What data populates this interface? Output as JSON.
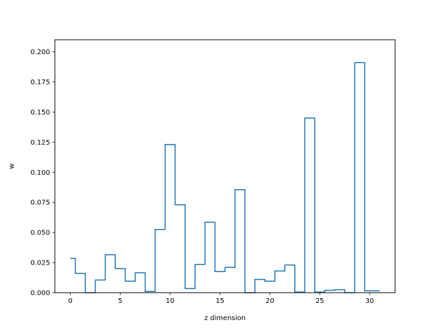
{
  "chart_data": {
    "type": "step",
    "title": "",
    "xlabel": "z dimension",
    "ylabel": "w",
    "xlim": [
      -1.55,
      32.55
    ],
    "ylim": [
      0,
      0.21
    ],
    "grid": false,
    "x_ticks": [
      0,
      5,
      10,
      15,
      20,
      25,
      30
    ],
    "x_tick_labels": [
      "0",
      "5",
      "10",
      "15",
      "20",
      "25",
      "30"
    ],
    "y_ticks": [
      0.0,
      0.025,
      0.05,
      0.075,
      0.1,
      0.125,
      0.15,
      0.175,
      0.2
    ],
    "y_tick_labels": [
      "0.000",
      "0.025",
      "0.050",
      "0.075",
      "0.100",
      "0.125",
      "0.150",
      "0.175",
      "0.200"
    ],
    "series": [
      {
        "color": "#1f77b4",
        "step_where": "mid",
        "x": [
          0,
          1,
          2,
          3,
          4,
          5,
          6,
          7,
          8,
          9,
          10,
          11,
          12,
          13,
          14,
          15,
          16,
          17,
          18,
          19,
          20,
          21,
          22,
          23,
          24,
          25,
          26,
          27,
          28,
          29,
          30,
          31
        ],
        "values": [
          0.0285,
          0.016,
          0.0,
          0.0105,
          0.0315,
          0.02,
          0.0095,
          0.0165,
          0.001,
          0.0525,
          0.123,
          0.073,
          0.0035,
          0.0235,
          0.0585,
          0.0175,
          0.021,
          0.0855,
          0.0,
          0.011,
          0.0095,
          0.018,
          0.023,
          0.0005,
          0.145,
          0.0005,
          0.002,
          0.0025,
          0.0,
          0.191,
          0.0015,
          0.0015
        ]
      }
    ]
  }
}
